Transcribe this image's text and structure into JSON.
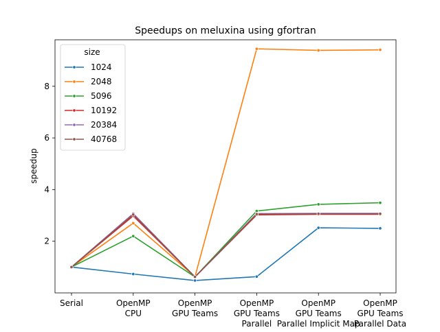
{
  "chart_data": {
    "type": "line",
    "title": "Speedups on meluxina using gfortran",
    "xlabel": "",
    "ylabel": "speedup",
    "categories": [
      "Serial",
      "OpenMP\nCPU",
      "OpenMP\nGPU Teams",
      "OpenMP\nGPU Teams\nParallel",
      "OpenMP\nGPU Teams\nParallel Implicit Map",
      "OpenMP\nGPU Teams\nParallel Data"
    ],
    "ylim": [
      0,
      9.8
    ],
    "yticks": [
      2,
      4,
      6,
      8
    ],
    "grid": false,
    "legend": {
      "title": "size",
      "placement": "top-left"
    },
    "series": [
      {
        "name": "1024",
        "color": "#1f77b4",
        "values": [
          1.0,
          0.73,
          0.48,
          0.63,
          2.52,
          2.5
        ]
      },
      {
        "name": "2048",
        "color": "#ff7f0e",
        "values": [
          1.0,
          2.7,
          0.63,
          9.45,
          9.39,
          9.41
        ]
      },
      {
        "name": "5096",
        "color": "#2ca02c",
        "values": [
          1.0,
          2.2,
          0.62,
          3.17,
          3.43,
          3.49
        ]
      },
      {
        "name": "10192",
        "color": "#d62728",
        "values": [
          1.0,
          2.98,
          0.62,
          3.02,
          3.04,
          3.04
        ]
      },
      {
        "name": "20384",
        "color": "#9467bd",
        "values": [
          1.0,
          3.07,
          0.62,
          3.07,
          3.08,
          3.08
        ]
      },
      {
        "name": "40768",
        "color": "#8c564b",
        "values": [
          1.0,
          3.03,
          0.62,
          3.05,
          3.06,
          3.06
        ]
      }
    ]
  }
}
